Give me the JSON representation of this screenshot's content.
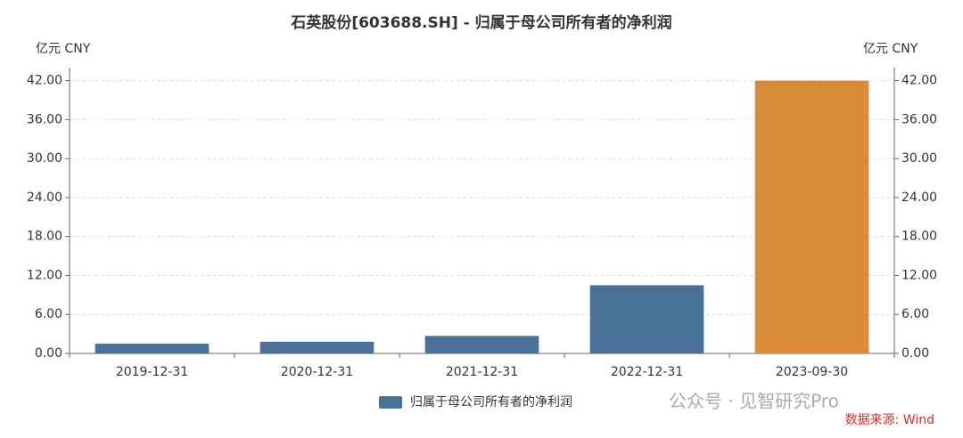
{
  "chart_data": {
    "type": "bar",
    "title": "石英股份[603688.SH] - 归属于母公司所有者的净利润",
    "y_unit": "亿元  CNY",
    "categories": [
      "2019-12-31",
      "2020-12-31",
      "2021-12-31",
      "2022-12-31",
      "2023-09-30"
    ],
    "series": [
      {
        "name": "归属于母公司所有者的净利润",
        "color": "#4a7298",
        "values": [
          1.5,
          1.8,
          2.7,
          10.5,
          42.0
        ]
      }
    ],
    "bar_colors": [
      "#4a7298",
      "#4a7298",
      "#4a7298",
      "#4a7298",
      "#d98b3a"
    ],
    "ylim": [
      0,
      44
    ],
    "yticks": [
      {
        "value": 0,
        "label": "0.00"
      },
      {
        "value": 6,
        "label": "6.00"
      },
      {
        "value": 12,
        "label": "12.00"
      },
      {
        "value": 18,
        "label": "18.00"
      },
      {
        "value": 24,
        "label": "24.00"
      },
      {
        "value": 30,
        "label": "30.00"
      },
      {
        "value": 36,
        "label": "36.00"
      },
      {
        "value": 42,
        "label": "42.00"
      }
    ],
    "grid": true,
    "watermark": "公众号 · 见智研究Pro",
    "source": "数据来源: Wind"
  }
}
